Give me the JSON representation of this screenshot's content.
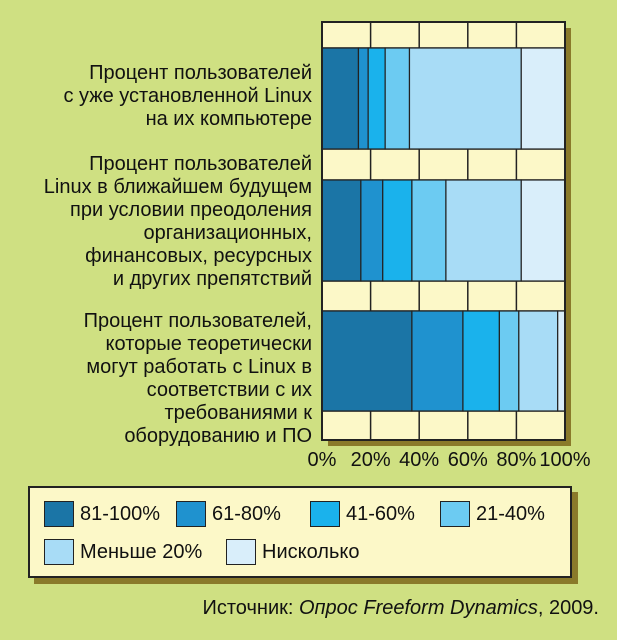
{
  "chart_data": {
    "type": "bar",
    "orientation": "horizontal-stacked-100",
    "categories": [
      "Процент пользователей\nс уже установленной Linux\nна их компьютере",
      "Процент пользователей\nLinux в ближайшем будущем\nпри условии преодоления\nорганизационных,\nфинансовых, ресурсных\nи других препятствий",
      "Процент пользователей,\nкоторые теоретически\nмогут работать с Linux в\nсоответствии с их\nтребованиями к\nоборудованию и ПО"
    ],
    "series": [
      {
        "name": "81-100%",
        "color": "#1b75a6",
        "values": [
          15,
          16,
          37
        ]
      },
      {
        "name": "61-80%",
        "color": "#1f92cf",
        "values": [
          4,
          9,
          21
        ]
      },
      {
        "name": "41-60%",
        "color": "#1ab2ec",
        "values": [
          7,
          12,
          15
        ]
      },
      {
        "name": "21-40%",
        "color": "#6ccbf2",
        "values": [
          10,
          14,
          8
        ]
      },
      {
        "name": "Меньше 20%",
        "color": "#a8dcf6",
        "values": [
          46,
          31,
          16
        ]
      },
      {
        "name": "Нисколько",
        "color": "#d9eefa",
        "values": [
          18,
          18,
          3
        ]
      }
    ],
    "xticks": [
      "0%",
      "20%",
      "40%",
      "60%",
      "80%",
      "100%"
    ],
    "xlim": [
      0,
      100
    ],
    "grid": true,
    "legend_position": "bottom"
  },
  "source": {
    "prefix": "Источник: ",
    "publication": "Опрос Freeform Dynamics",
    "suffix": ", 2009."
  }
}
